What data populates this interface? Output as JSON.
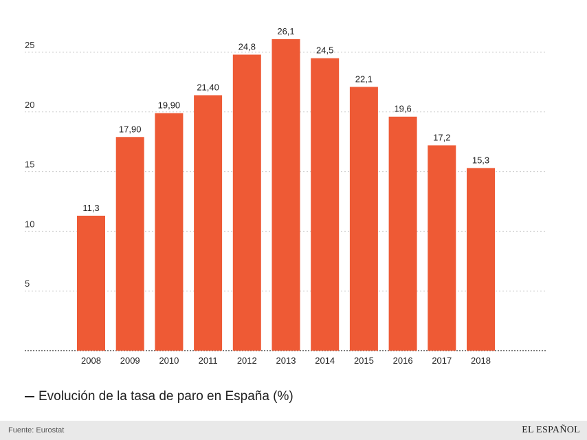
{
  "colors": {
    "bar": "#EE5A35",
    "grid": "#cccccc",
    "axis": "#333333",
    "footer_bg": "#e9e9e9"
  },
  "chart_data": {
    "type": "bar",
    "title": "",
    "categories": [
      "2008",
      "2009",
      "2010",
      "2011",
      "2012",
      "2013",
      "2014",
      "2015",
      "2016",
      "2017",
      "2018"
    ],
    "values": [
      11.3,
      17.9,
      19.9,
      21.4,
      24.8,
      26.1,
      24.5,
      22.1,
      19.6,
      17.2,
      15.3
    ],
    "value_labels": [
      "11,3",
      "17,90",
      "19,90",
      "21,40",
      "24,8",
      "26,1",
      "24,5",
      "22,1",
      "19,6",
      "17,2",
      "15,3"
    ],
    "yticks": [
      5,
      10,
      15,
      20,
      25
    ],
    "ylim": [
      0,
      27
    ],
    "xlabel": "",
    "ylabel": "",
    "grid": true,
    "legend": {
      "position": "bottom-left",
      "entries": [
        "Evolución de la tasa de paro en España (%)"
      ]
    }
  },
  "legend_icon": "dash-line-icon",
  "footer": {
    "source": "Fuente: Eurostat",
    "brand": "EL ESPAÑOL"
  }
}
